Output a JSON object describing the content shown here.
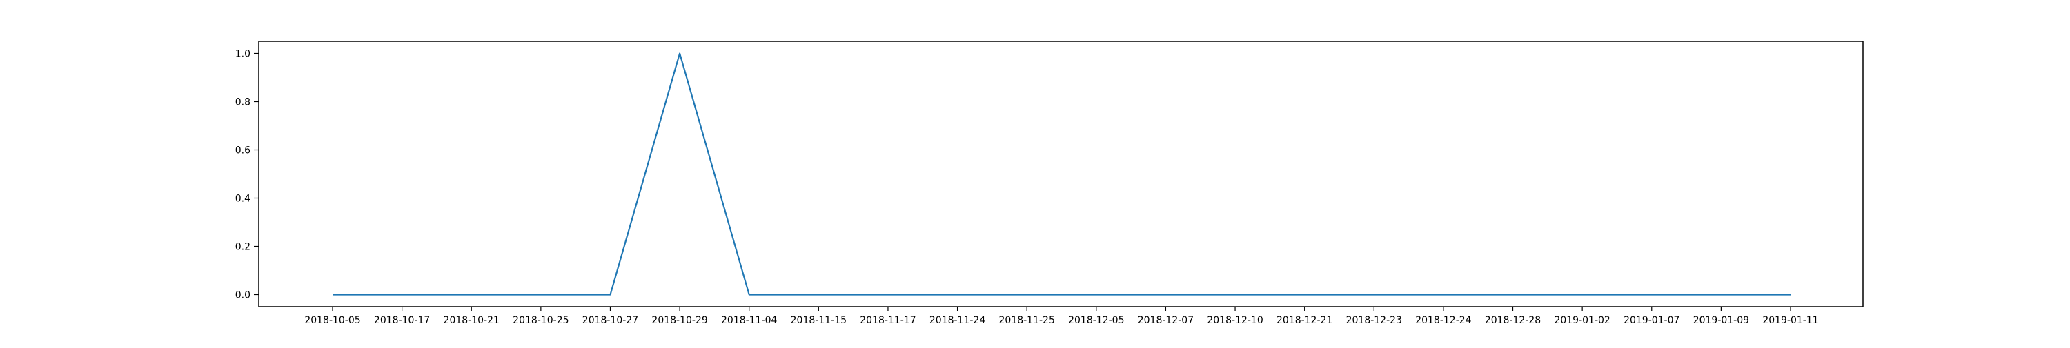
{
  "chart_data": {
    "type": "line",
    "x": [
      "2018-10-05",
      "2018-10-17",
      "2018-10-21",
      "2018-10-25",
      "2018-10-27",
      "2018-10-29",
      "2018-11-04",
      "2018-11-15",
      "2018-11-17",
      "2018-11-24",
      "2018-11-25",
      "2018-12-05",
      "2018-12-07",
      "2018-12-10",
      "2018-12-21",
      "2018-12-23",
      "2018-12-24",
      "2018-12-28",
      "2019-01-02",
      "2019-01-07",
      "2019-01-09",
      "2019-01-11"
    ],
    "series": [
      {
        "values": [
          0,
          0,
          0,
          0,
          0,
          1.0,
          0,
          0,
          0,
          0,
          0,
          0,
          0,
          0,
          0,
          0,
          0,
          0,
          0,
          0,
          0,
          0
        ],
        "color": "#1f77b4"
      }
    ],
    "yticks": [
      "0.0",
      "0.2",
      "0.4",
      "0.6",
      "0.8",
      "1.0"
    ],
    "ylim": [
      -0.05,
      1.05
    ],
    "title": "",
    "xlabel": "",
    "ylabel": "",
    "grid": false,
    "legend": "none"
  }
}
